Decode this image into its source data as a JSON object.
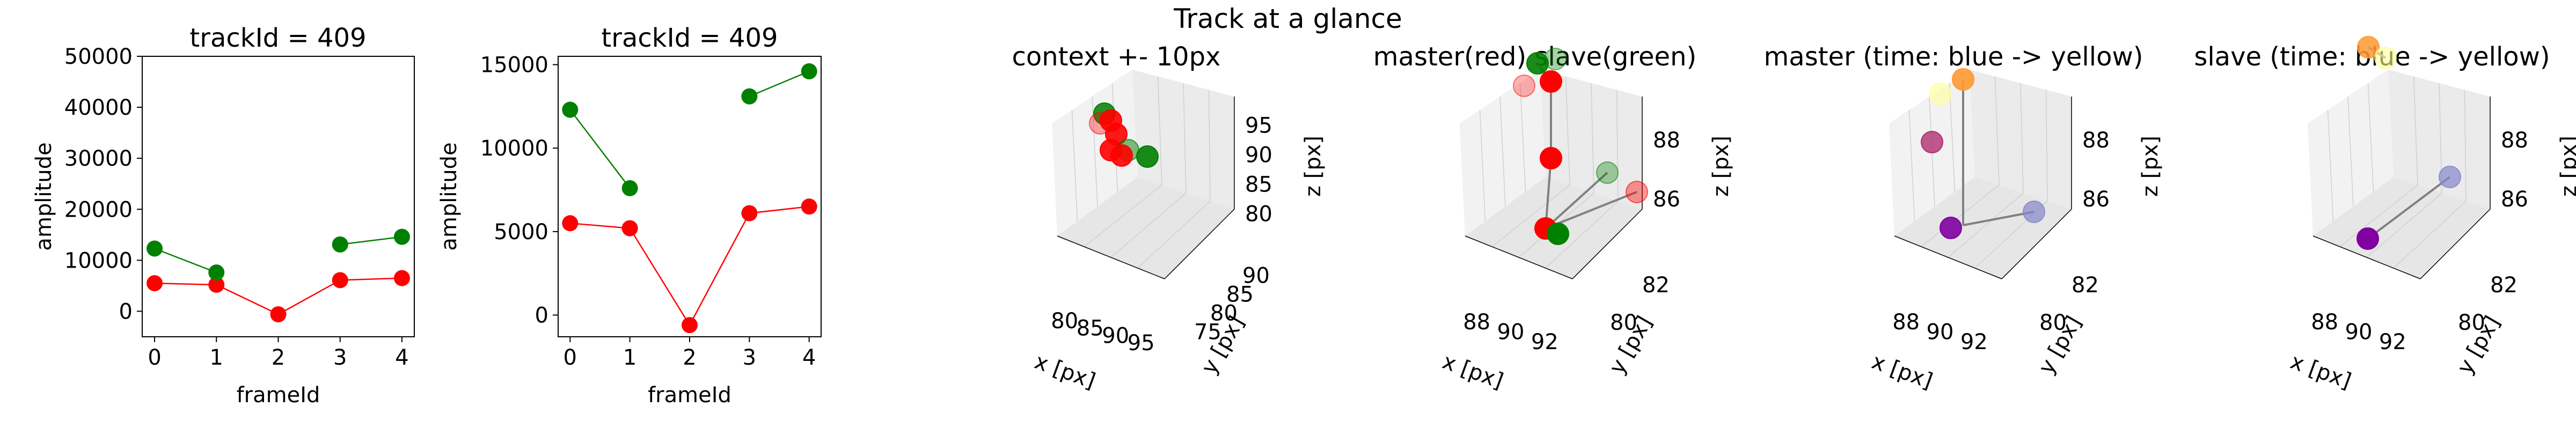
{
  "figure": {
    "suptitle": "Track at a glance"
  },
  "colors": {
    "master": "#ff0000",
    "slave": "#008000",
    "time_start": "#800080",
    "time_end": "#ffff80",
    "link": "#808080"
  },
  "chart_data": [
    {
      "type": "line",
      "title": "trackId = 409",
      "xlabel": "frameId",
      "ylabel": "amplitude",
      "xlim": [
        -0.2,
        4.2
      ],
      "ylim": [
        -5000,
        50000
      ],
      "xticks": [
        "0",
        "1",
        "2",
        "3",
        "4"
      ],
      "yticks": [
        "0",
        "10000",
        "20000",
        "30000",
        "40000",
        "50000"
      ],
      "series": [
        {
          "color": "red",
          "segments": [
            [
              [
                0,
                5500
              ],
              [
                1,
                5200
              ],
              [
                2,
                -600
              ],
              [
                3,
                6100
              ],
              [
                4,
                6500
              ]
            ]
          ]
        },
        {
          "color": "green",
          "segments": [
            [
              [
                0,
                12300
              ],
              [
                1,
                7600
              ]
            ],
            [
              [
                3,
                13100
              ],
              [
                4,
                14600
              ]
            ]
          ]
        }
      ]
    },
    {
      "type": "line",
      "title": "trackId = 409",
      "xlabel": "frameId",
      "ylabel": "amplitude",
      "xlim": [
        -0.2,
        4.2
      ],
      "ylim": [
        -1300,
        15500
      ],
      "xticks": [
        "0",
        "1",
        "2",
        "3",
        "4"
      ],
      "yticks": [
        "0",
        "5000",
        "10000",
        "15000"
      ],
      "series": [
        {
          "color": "red",
          "segments": [
            [
              [
                0,
                5500
              ],
              [
                1,
                5200
              ],
              [
                2,
                -600
              ],
              [
                3,
                6100
              ],
              [
                4,
                6500
              ]
            ]
          ]
        },
        {
          "color": "green",
          "segments": [
            [
              [
                0,
                12300
              ],
              [
                1,
                7600
              ]
            ],
            [
              [
                3,
                13100
              ],
              [
                4,
                14600
              ]
            ]
          ]
        }
      ]
    },
    {
      "type": "scatter",
      "subtype": "3d",
      "title": "context +- 10px",
      "xlabel": "x [px]",
      "ylabel": "y [px]",
      "zlabel": "z [px]",
      "xticks": [
        "80",
        "85",
        "90",
        "95"
      ],
      "yticks": [
        "75",
        "80",
        "85",
        "90"
      ],
      "zticks": [
        "80",
        "85",
        "90",
        "95"
      ],
      "points": [
        {
          "color": "green",
          "alpha": 0.85
        },
        {
          "color": "red",
          "alpha": 0.35
        },
        {
          "color": "red",
          "alpha": 0.9
        },
        {
          "color": "red",
          "alpha": 0.9
        },
        {
          "color": "red",
          "alpha": 0.9
        },
        {
          "color": "green",
          "alpha": 0.5
        },
        {
          "color": "red",
          "alpha": 0.9
        },
        {
          "color": "green",
          "alpha": 0.9
        }
      ]
    },
    {
      "type": "scatter",
      "subtype": "3d",
      "title": "master(red) slave(green)",
      "xlabel": "x [px]",
      "ylabel": "y [px]",
      "zlabel": "z [px]",
      "xticks": [
        "88",
        "90",
        "92"
      ],
      "yticks": [
        "80",
        "82"
      ],
      "zticks": [
        "86",
        "88"
      ],
      "points": [
        {
          "color": "green",
          "alpha": 0.9
        },
        {
          "color": "green",
          "alpha": 0.35
        },
        {
          "color": "red",
          "alpha": 0.3
        },
        {
          "color": "red",
          "alpha": 1.0
        },
        {
          "color": "red",
          "alpha": 1.0
        },
        {
          "color": "green",
          "alpha": 0.35
        },
        {
          "color": "red",
          "alpha": 0.4
        },
        {
          "color": "red",
          "alpha": 1.0
        },
        {
          "color": "green",
          "alpha": 1.0
        }
      ]
    },
    {
      "type": "scatter",
      "subtype": "3d",
      "title": "master (time: blue -> yellow)",
      "xlabel": "x [px]",
      "ylabel": "y [px]",
      "zlabel": "z [px]",
      "xticks": [
        "88",
        "90",
        "92"
      ],
      "yticks": [
        "80",
        "82"
      ],
      "zticks": [
        "86",
        "88"
      ],
      "points": [
        {
          "color": "#ffff99",
          "alpha": 0.6
        },
        {
          "color": "#ff9933",
          "alpha": 0.9
        },
        {
          "color": "#b03070",
          "alpha": 0.8
        },
        {
          "color": "#8888cc",
          "alpha": 0.7
        },
        {
          "color": "#8000a0",
          "alpha": 0.9
        }
      ]
    },
    {
      "type": "scatter",
      "subtype": "3d",
      "title": "slave (time: blue -> yellow)",
      "xlabel": "x [px]",
      "ylabel": "y [px]",
      "zlabel": "z [px]",
      "xticks": [
        "88",
        "90",
        "92"
      ],
      "yticks": [
        "80",
        "82"
      ],
      "zticks": [
        "86",
        "88"
      ],
      "points": [
        {
          "color": "#ff9933",
          "alpha": 0.85
        },
        {
          "color": "#ffff99",
          "alpha": 0.6
        },
        {
          "color": "#8888cc",
          "alpha": 0.7
        },
        {
          "color": "#8000a0",
          "alpha": 1.0
        }
      ]
    }
  ]
}
